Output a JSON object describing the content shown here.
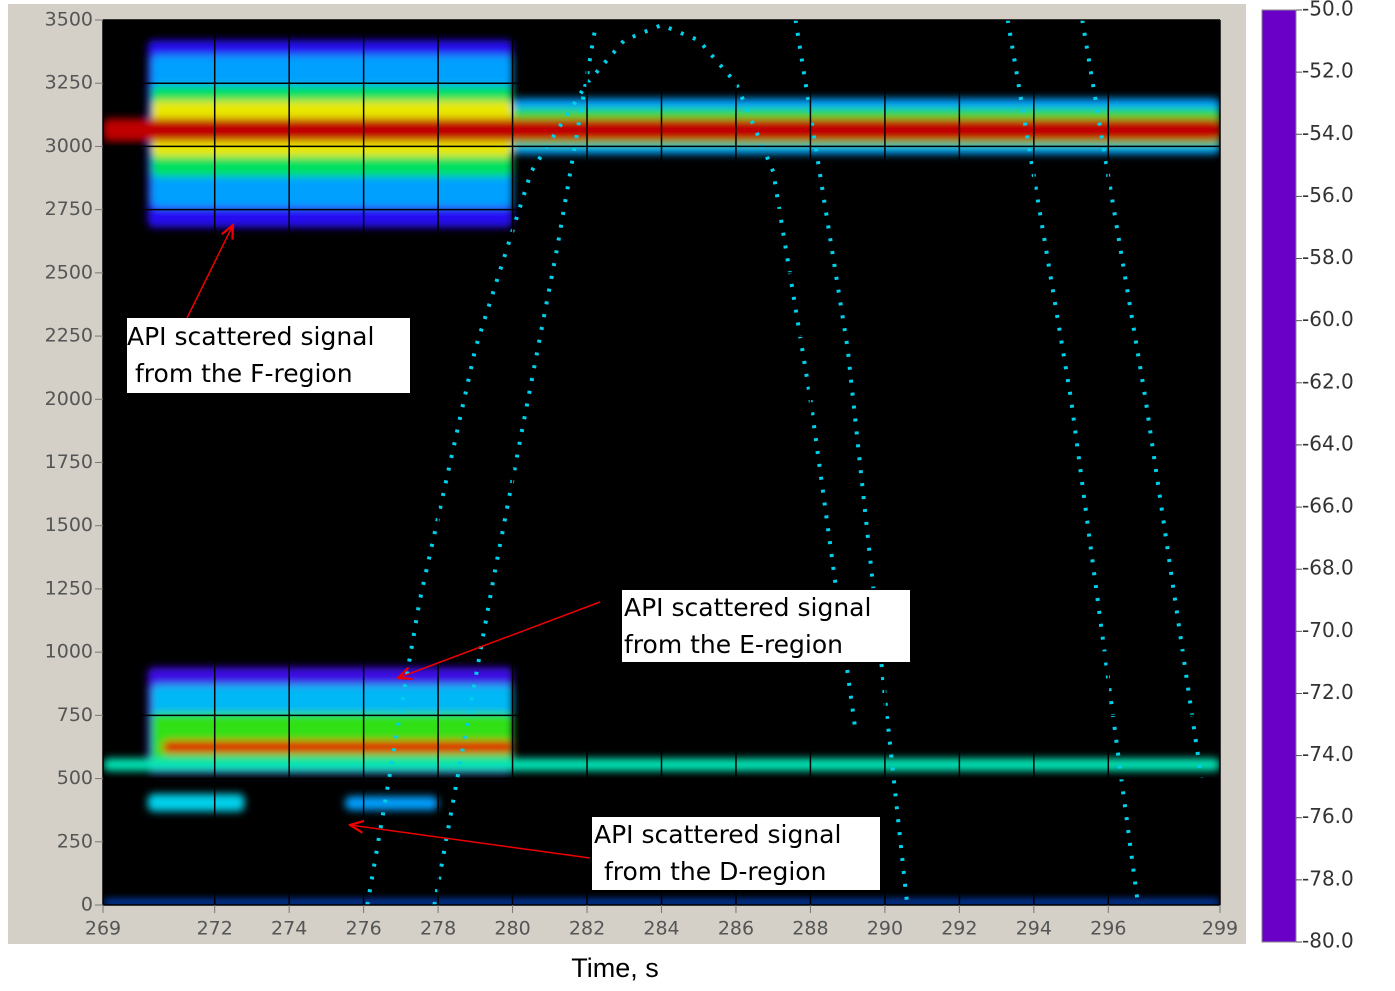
{
  "chart_data": {
    "type": "spectrogram",
    "x_label": "Time, s",
    "xlim": [
      269,
      299
    ],
    "xticks": [
      269,
      272,
      274,
      276,
      278,
      280,
      282,
      284,
      286,
      288,
      290,
      292,
      294,
      296,
      299
    ],
    "ylim": [
      0,
      3500
    ],
    "yticks": [
      0,
      250,
      500,
      750,
      1000,
      1250,
      1500,
      1750,
      2000,
      2250,
      2500,
      2750,
      3000,
      3250,
      3500
    ],
    "grid": true,
    "clim": [
      -80,
      -50
    ],
    "cticks": [
      {
        "value": -50,
        "label": "-50.0"
      },
      {
        "value": -52,
        "label": "-52.0"
      },
      {
        "value": -54,
        "label": "-54.0"
      },
      {
        "value": -56,
        "label": "-56.0"
      },
      {
        "value": -58,
        "label": "-58.0"
      },
      {
        "value": -60,
        "label": "-60.0"
      },
      {
        "value": -62,
        "label": "-62.0"
      },
      {
        "value": -64,
        "label": "-64.0"
      },
      {
        "value": -66,
        "label": "-66.0"
      },
      {
        "value": -68,
        "label": "-68.0"
      },
      {
        "value": -70,
        "label": "-70.0"
      },
      {
        "value": -72,
        "label": "-72.0"
      },
      {
        "value": -74,
        "label": "-74.0"
      },
      {
        "value": -76,
        "label": "-76.0"
      },
      {
        "value": -78,
        "label": "-78.0"
      },
      {
        "value": -80,
        "label": "-80.0"
      }
    ],
    "colorscale": [
      {
        "value": -80,
        "color": "#6a00c8"
      },
      {
        "value": -76,
        "color": "#1010ff"
      },
      {
        "value": -72,
        "color": "#00a0ff"
      },
      {
        "value": -69,
        "color": "#00e8e0"
      },
      {
        "value": -66,
        "color": "#00e060"
      },
      {
        "value": -62,
        "color": "#40e000"
      },
      {
        "value": -58,
        "color": "#e8e800"
      },
      {
        "value": -55,
        "color": "#ff9000"
      },
      {
        "value": -52,
        "color": "#ff2000"
      },
      {
        "value": -50,
        "color": "#c00000"
      }
    ],
    "regions": [
      {
        "x": [
          270.2,
          280
        ],
        "y": [
          2680,
          3420
        ],
        "level": -77
      },
      {
        "x": [
          270.3,
          280
        ],
        "y": [
          2760,
          3360
        ],
        "level": -72
      },
      {
        "x": [
          270.3,
          280
        ],
        "y": [
          2880,
          3240
        ],
        "level": -66
      },
      {
        "x": [
          270.3,
          280
        ],
        "y": [
          2960,
          3180
        ],
        "level": -58
      },
      {
        "x": [
          280,
          299
        ],
        "y": [
          2970,
          3190
        ],
        "level": -72
      },
      {
        "x": [
          280,
          299
        ],
        "y": [
          3000,
          3150
        ],
        "level": -64
      },
      {
        "x": [
          269,
          299
        ],
        "y": [
          3020,
          3110
        ],
        "level": -50
      },
      {
        "x": [
          270.2,
          280
        ],
        "y": [
          520,
          940
        ],
        "level": -78
      },
      {
        "x": [
          270.3,
          280
        ],
        "y": [
          560,
          870
        ],
        "level": -71
      },
      {
        "x": [
          270.3,
          280
        ],
        "y": [
          570,
          760
        ],
        "level": -63
      },
      {
        "x": [
          270.6,
          280
        ],
        "y": [
          600,
          650
        ],
        "level": -51
      },
      {
        "x": [
          269,
          299
        ],
        "y": [
          530,
          580
        ],
        "level": -68
      },
      {
        "x": [
          270.2,
          272.8
        ],
        "y": [
          370,
          440
        ],
        "level": -70
      },
      {
        "x": [
          275.5,
          278
        ],
        "y": [
          375,
          430
        ],
        "level": -72
      },
      {
        "x": [
          269,
          299
        ],
        "y": [
          0,
          20
        ],
        "level": -74
      }
    ],
    "traces": [
      {
        "x": [
          276.1,
          277.5,
          279,
          280.5,
          282,
          283,
          284,
          285,
          286,
          287,
          288,
          289.2
        ],
        "y": [
          0,
          1200,
          2200,
          2900,
          3250,
          3420,
          3480,
          3420,
          3250,
          2900,
          2000,
          700
        ],
        "level": -70
      },
      {
        "x": [
          277.9,
          279.5,
          281.2,
          282.2
        ],
        "y": [
          0,
          1300,
          2600,
          3450
        ],
        "level": -70
      },
      {
        "x": [
          287.6,
          289,
          290.6
        ],
        "y": [
          3500,
          2200,
          0
        ],
        "level": -70
      },
      {
        "x": [
          293.3,
          295,
          296.8
        ],
        "y": [
          3500,
          2000,
          0
        ],
        "level": -70
      },
      {
        "x": [
          295.3,
          297,
          298.5
        ],
        "y": [
          3500,
          2000,
          500
        ],
        "level": -70
      }
    ],
    "annotations": [
      [
        "API scattered signal",
        "from the F-region"
      ],
      [
        "API scattered signal",
        "from the E-region"
      ],
      [
        "API scattered signal",
        "from the D-region"
      ]
    ]
  }
}
